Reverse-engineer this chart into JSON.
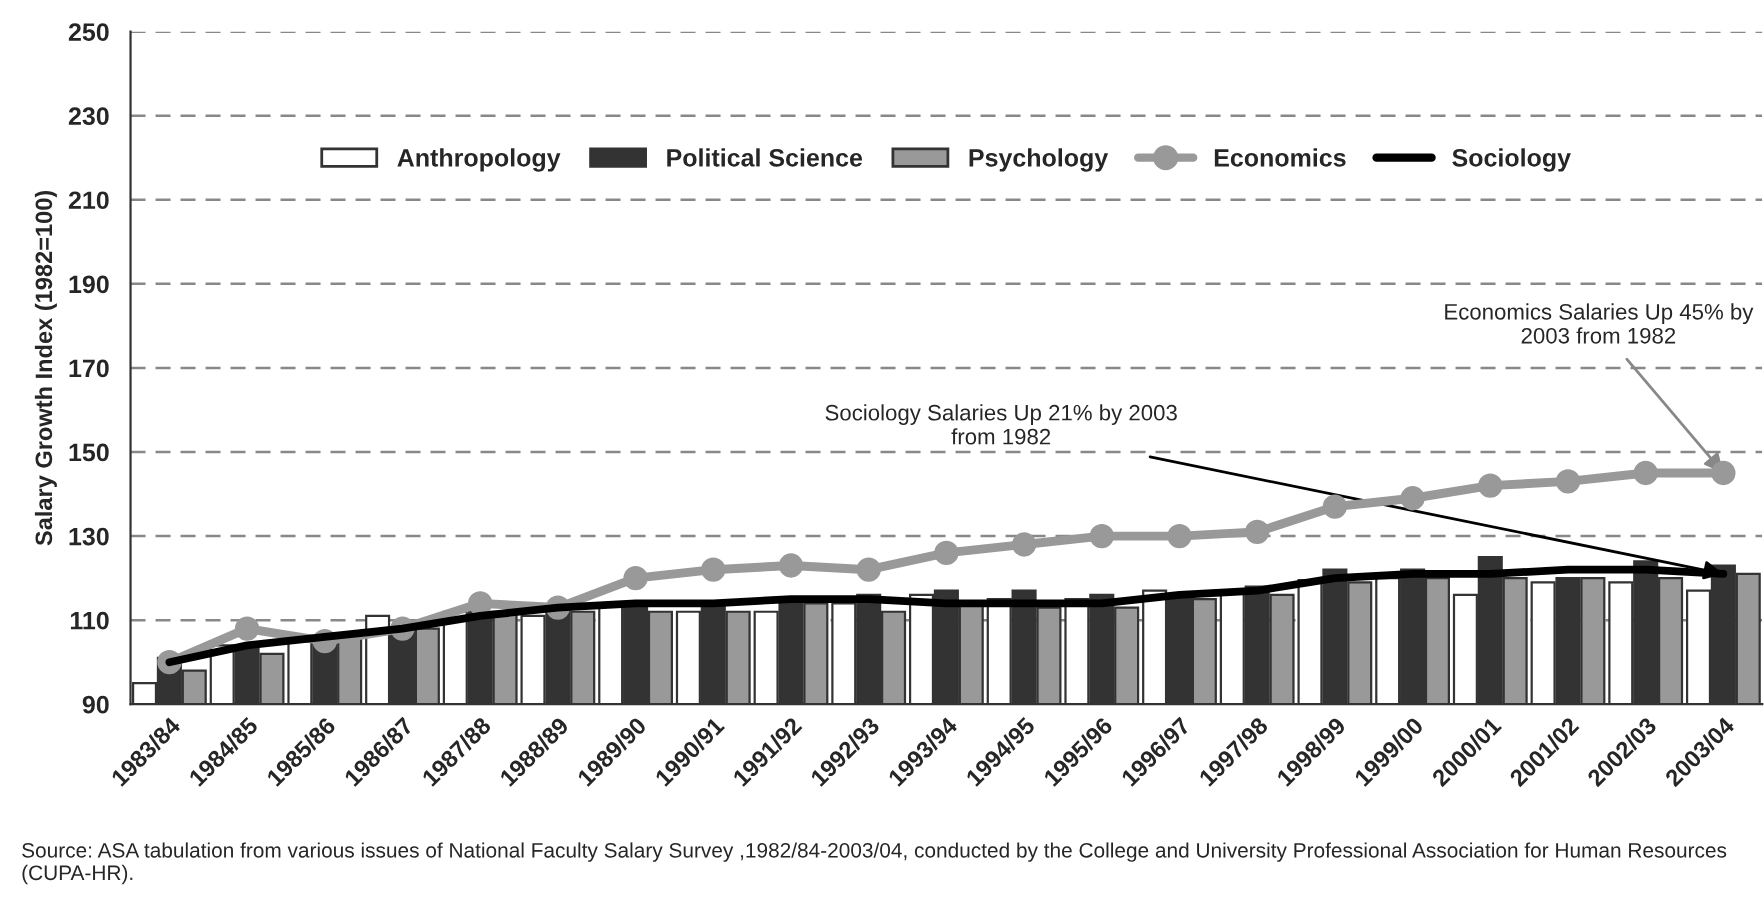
{
  "chart_data": {
    "type": "bar",
    "ylabel": "Salary Growth Index (1982=100)",
    "categories": [
      "1983/84",
      "1984/85",
      "1985/86",
      "1986/87",
      "1987/88",
      "1988/89",
      "1989/90",
      "1990/91",
      "1991/92",
      "1992/93",
      "1993/94",
      "1994/95",
      "1995/96",
      "1996/97",
      "1997/98",
      "1998/99",
      "1999/00",
      "2000/01",
      "2001/02",
      "2002/03",
      "2003/04"
    ],
    "series": [
      {
        "name": "Anthropology",
        "color": "#ffffff",
        "values": [
          95,
          104,
          106,
          111,
          112,
          111,
          114,
          112,
          112,
          114,
          116,
          115,
          115,
          117,
          117,
          119.5,
          120,
          116,
          119,
          119,
          117
        ]
      },
      {
        "name": "Political Science",
        "color": "#333333",
        "values": [
          101,
          104,
          105,
          108,
          112,
          113,
          114,
          114,
          115,
          116,
          117,
          117,
          116,
          116,
          118,
          122,
          122,
          125,
          120,
          124,
          123
        ]
      },
      {
        "name": "Psychology",
        "color": "#999999",
        "values": [
          98,
          102,
          106,
          108,
          112,
          112,
          112,
          112,
          114,
          112,
          114,
          113,
          113,
          115,
          116,
          119,
          120,
          120,
          120,
          120,
          121
        ]
      },
      {
        "name": "Economics",
        "type": "line",
        "color": "#999999",
        "marker": "circle",
        "values": [
          100,
          108,
          105,
          108,
          114,
          113,
          120,
          122,
          123,
          122,
          126,
          128,
          130,
          130,
          131,
          137,
          139,
          142,
          143,
          145,
          145
        ]
      },
      {
        "name": "Sociology",
        "type": "line",
        "color": "#000000",
        "marker": "none",
        "values": [
          100,
          104,
          106,
          108,
          111,
          113,
          114,
          114,
          115,
          115,
          114,
          114,
          114,
          116,
          117,
          120,
          121,
          121,
          122,
          122,
          121
        ]
      }
    ],
    "ylim": [
      90,
      250
    ],
    "yticks": [
      90,
      110,
      130,
      150,
      170,
      190,
      210,
      230,
      250
    ],
    "grid": "y",
    "legend": "top",
    "annotations": [
      {
        "text": "Economics Salaries Up 45% by\n2003 from 1982",
        "x": "2003/04",
        "y": 145
      },
      {
        "text": "Sociology Salaries Up 21% by 2003\nfrom 1982",
        "x": "2003/04",
        "y": 121
      },
      "Source: ASA tabulation from various issues of National Faculty Salary Survey ,1982/84-2003/04, conducted by the College and University Professional Association for Human Resources (CUPA-HR)."
    ]
  }
}
